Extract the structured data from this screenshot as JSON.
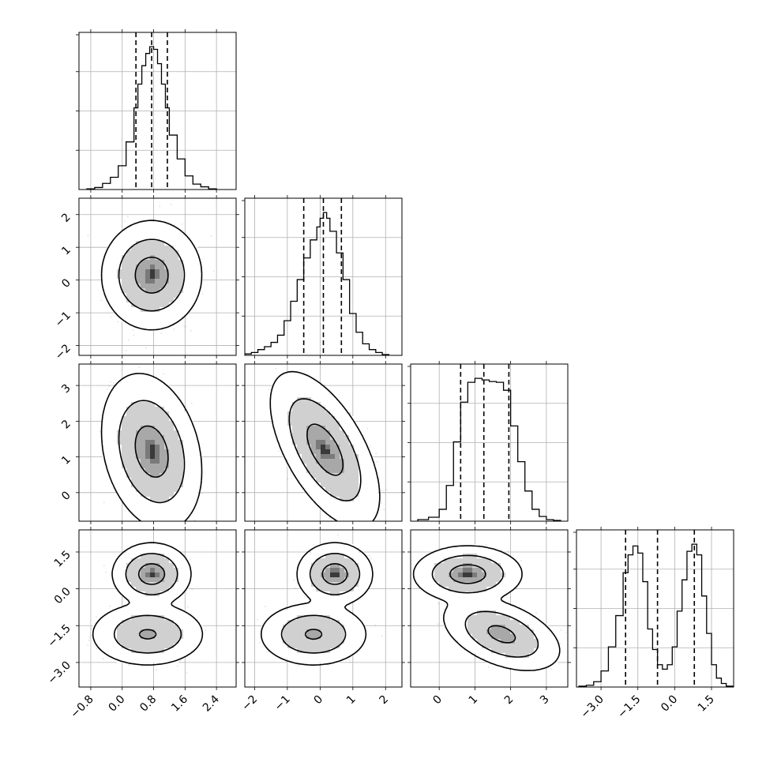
{
  "chart_data": {
    "type": "corner",
    "n_params": 4,
    "labels": [],
    "ranges": [
      [
        -1.1,
        2.9
      ],
      [
        -2.3,
        2.5
      ],
      [
        -0.8,
        3.6
      ],
      [
        -4.0,
        2.4
      ]
    ],
    "ticks": [
      [
        -0.8,
        0.0,
        0.8,
        1.6,
        2.4
      ],
      [
        -2,
        -1,
        0,
        1,
        2
      ],
      [
        0,
        1,
        2,
        3
      ],
      [
        -3.0,
        -1.5,
        0.0,
        1.5
      ]
    ],
    "tick_labels": [
      [
        "−0.8",
        "0.0",
        "0.8",
        "1.6",
        "2.4"
      ],
      [
        "−2",
        "−1",
        "0",
        "1",
        "2"
      ],
      [
        "0",
        "1",
        "2",
        "3"
      ],
      [
        "−3.0",
        "−1.5",
        "0.0",
        "1.5"
      ]
    ],
    "quantiles": [
      0.16,
      0.5,
      0.84
    ],
    "quantile_values": [
      [
        0.35,
        0.75,
        1.15
      ],
      [
        -0.5,
        0.1,
        0.65
      ],
      [
        0.6,
        1.25,
        1.95
      ],
      [
        -2.0,
        -0.7,
        0.8
      ]
    ],
    "histograms": [
      {
        "param": 0,
        "bin_edges": [
          -0.9,
          -0.7,
          -0.5,
          -0.3,
          -0.1,
          0.1,
          0.3,
          0.4,
          0.5,
          0.6,
          0.7,
          0.8,
          0.9,
          1.0,
          1.1,
          1.2,
          1.4,
          1.6,
          1.8,
          2.0,
          2.2,
          2.4
        ],
        "counts": [
          1,
          3,
          9,
          18,
          35,
          70,
          120,
          155,
          182,
          200,
          210,
          206,
          185,
          155,
          120,
          80,
          45,
          20,
          8,
          4,
          1
        ]
      },
      {
        "param": 1,
        "bin_edges": [
          -2.3,
          -2.1,
          -1.9,
          -1.7,
          -1.5,
          -1.3,
          -1.1,
          -0.9,
          -0.7,
          -0.5,
          -0.3,
          -0.1,
          0.0,
          0.1,
          0.2,
          0.3,
          0.5,
          0.7,
          0.9,
          1.1,
          1.3,
          1.5,
          1.7,
          1.9,
          2.1
        ],
        "counts": [
          2,
          4,
          8,
          12,
          18,
          28,
          48,
          75,
          105,
          135,
          160,
          178,
          190,
          198,
          190,
          172,
          142,
          105,
          58,
          32,
          16,
          8,
          4,
          1
        ]
      },
      {
        "param": 2,
        "bin_edges": [
          -0.6,
          -0.3,
          0.0,
          0.2,
          0.4,
          0.6,
          0.8,
          1.0,
          1.2,
          1.4,
          1.6,
          1.8,
          2.0,
          2.2,
          2.4,
          2.6,
          2.8,
          3.0,
          3.2,
          3.4
        ],
        "counts": [
          2,
          5,
          15,
          45,
          100,
          150,
          175,
          180,
          178,
          176,
          175,
          165,
          120,
          75,
          38,
          15,
          6,
          2,
          1
        ]
      },
      {
        "param": 3,
        "bin_edges": [
          -3.9,
          -3.6,
          -3.3,
          -3.0,
          -2.7,
          -2.4,
          -2.1,
          -1.9,
          -1.7,
          -1.5,
          -1.3,
          -1.1,
          -0.9,
          -0.7,
          -0.5,
          -0.3,
          -0.1,
          0.1,
          0.3,
          0.5,
          0.7,
          0.9,
          1.1,
          1.3,
          1.5,
          1.7,
          1.9,
          2.1,
          2.4
        ],
        "counts": [
          1,
          2,
          6,
          18,
          45,
          80,
          128,
          148,
          158,
          150,
          118,
          65,
          42,
          25,
          20,
          25,
          45,
          85,
          120,
          152,
          160,
          148,
          102,
          60,
          25,
          10,
          4,
          1
        ]
      }
    ],
    "density_clusters": [
      {
        "pair": [
          0,
          1
        ],
        "clusters": [
          {
            "center": [
              0.75,
              0.15
            ],
            "sigma": [
              0.42,
              0.55
            ],
            "rho": 0.0,
            "weight": 1.0
          }
        ]
      },
      {
        "pair": [
          0,
          2
        ],
        "clusters": [
          {
            "center": [
              0.75,
              1.15
            ],
            "sigma": [
              0.42,
              0.72
            ],
            "rho": -0.25,
            "weight": 1.0
          }
        ]
      },
      {
        "pair": [
          1,
          2
        ],
        "clusters": [
          {
            "center": [
              0.15,
              1.2
            ],
            "sigma": [
              0.55,
              0.72
            ],
            "rho": -0.6,
            "weight": 1.0
          }
        ]
      },
      {
        "pair": [
          0,
          3
        ],
        "clusters": [
          {
            "center": [
              0.75,
              0.6
            ],
            "sigma": [
              0.33,
              0.42
            ],
            "rho": 0.0,
            "weight": 0.5
          },
          {
            "center": [
              0.65,
              -1.85
            ],
            "sigma": [
              0.48,
              0.43
            ],
            "rho": 0.0,
            "weight": 0.5
          }
        ]
      },
      {
        "pair": [
          1,
          3
        ],
        "clusters": [
          {
            "center": [
              0.45,
              0.6
            ],
            "sigma": [
              0.38,
              0.42
            ],
            "rho": 0.0,
            "weight": 0.5
          },
          {
            "center": [
              -0.2,
              -1.85
            ],
            "sigma": [
              0.55,
              0.43
            ],
            "rho": 0.0,
            "weight": 0.5
          }
        ]
      },
      {
        "pair": [
          2,
          3
        ],
        "clusters": [
          {
            "center": [
              0.8,
              0.6
            ],
            "sigma": [
              0.5,
              0.38
            ],
            "rho": 0.0,
            "weight": 0.5
          },
          {
            "center": [
              1.75,
              -1.85
            ],
            "sigma": [
              0.55,
              0.5
            ],
            "rho": -0.45,
            "weight": 0.5
          }
        ]
      }
    ],
    "contour_levels": [
      0.39,
      0.86,
      0.99
    ],
    "grid": true,
    "legend": null
  }
}
